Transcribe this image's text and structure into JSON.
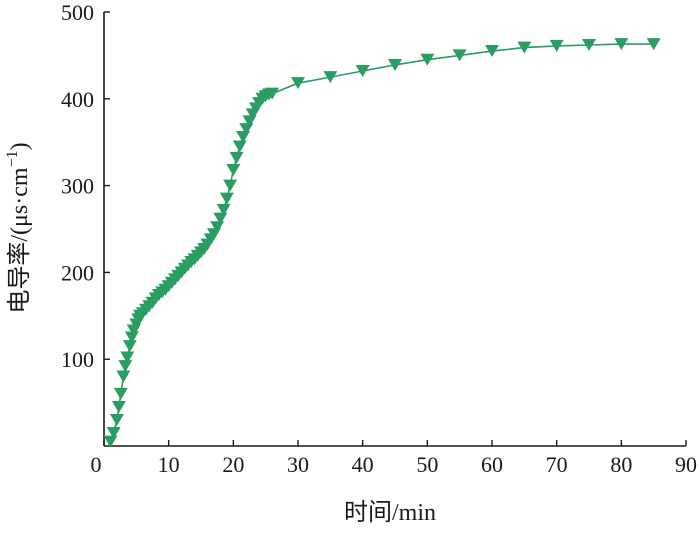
{
  "chart_data": {
    "type": "line",
    "title": "",
    "xlabel": "时间/min",
    "ylabel_main": "电导率/(μs·cm",
    "ylabel_sup": "−1",
    "ylabel_close": ")",
    "xlim": [
      0,
      90
    ],
    "ylim": [
      0,
      500
    ],
    "xticks": [
      0,
      10,
      20,
      30,
      40,
      50,
      60,
      70,
      80,
      90
    ],
    "yticks": [
      0,
      100,
      200,
      300,
      400,
      500
    ],
    "grid": false,
    "legend": "none",
    "series_color": "#2a9d62",
    "marker": "down-triangle",
    "series": [
      {
        "x": [
          1.0,
          1.5,
          2.0,
          2.3,
          2.6,
          3.0,
          3.3,
          3.6,
          4.0,
          4.3,
          4.6,
          5.0,
          5.3,
          5.6,
          6.0,
          6.5,
          7.0,
          7.5,
          8.0,
          8.5,
          9.0,
          9.5,
          10.0,
          10.5,
          11.0,
          11.5,
          12.0,
          12.5,
          13.0,
          13.5,
          14.0,
          14.5,
          15.0,
          15.5,
          16.0,
          16.5,
          17.0,
          17.5,
          18.0,
          18.5,
          19.0,
          19.5,
          20.0,
          20.5,
          21.0,
          21.5,
          22.0,
          22.5,
          23.0,
          23.5,
          24.0,
          24.5,
          25.0,
          25.5,
          26.0,
          30.0,
          35.0,
          40.0,
          45.0,
          50.0,
          55.0,
          60.0,
          65.0,
          70.0,
          75.0,
          80.0,
          85.0
        ],
        "y": [
          5,
          15,
          30,
          45,
          60,
          80,
          92,
          102,
          115,
          125,
          133,
          140,
          146,
          150,
          153,
          157,
          161,
          165,
          170,
          174,
          177,
          180,
          184,
          188,
          192,
          196,
          200,
          204,
          208,
          212,
          215,
          219,
          223,
          227,
          232,
          238,
          244,
          252,
          262,
          272,
          285,
          300,
          318,
          332,
          345,
          356,
          365,
          374,
          382,
          389,
          395,
          400,
          403,
          405,
          406,
          418,
          425,
          432,
          439,
          445,
          450,
          455,
          459,
          461,
          462,
          463,
          463
        ]
      }
    ]
  }
}
